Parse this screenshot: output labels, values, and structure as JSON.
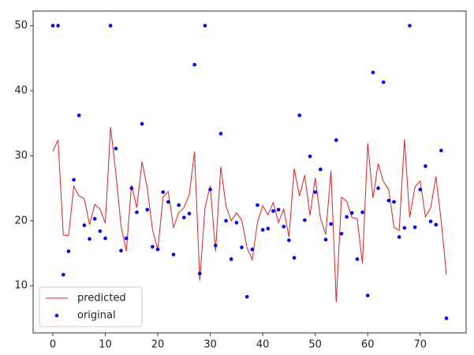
{
  "chart_data": {
    "type": "line",
    "x": [
      0,
      1,
      2,
      3,
      4,
      5,
      6,
      7,
      8,
      9,
      10,
      11,
      12,
      13,
      14,
      15,
      16,
      17,
      18,
      19,
      20,
      21,
      22,
      23,
      24,
      25,
      26,
      27,
      28,
      29,
      30,
      31,
      32,
      33,
      34,
      35,
      36,
      37,
      38,
      39,
      40,
      41,
      42,
      43,
      44,
      45,
      46,
      47,
      48,
      49,
      50,
      51,
      52,
      53,
      54,
      55,
      56,
      57,
      58,
      59,
      60,
      61,
      62,
      63,
      64,
      65,
      66,
      67,
      68,
      69,
      70,
      71,
      72,
      73,
      74,
      75
    ],
    "series": [
      {
        "name": "predicted",
        "type": "line",
        "color": "#e02020",
        "values": [
          30.7,
          32.4,
          17.8,
          17.7,
          25.3,
          23.8,
          23.4,
          19.4,
          22.5,
          21.8,
          19.6,
          34.4,
          27.4,
          19.2,
          15.3,
          25.5,
          22.0,
          29.1,
          25.0,
          18.6,
          15.5,
          23.6,
          24.5,
          18.9,
          21.3,
          22.0,
          24.0,
          30.6,
          10.8,
          22.0,
          25.4,
          15.3,
          28.3,
          22.3,
          20.0,
          21.2,
          20.1,
          15.9,
          14.0,
          19.8,
          22.3,
          20.9,
          22.8,
          19.7,
          21.8,
          17.5,
          28.0,
          23.8,
          27.0,
          20.8,
          26.6,
          20.4,
          17.9,
          27.7,
          7.5,
          23.6,
          23.0,
          20.5,
          20.3,
          13.4,
          31.9,
          23.5,
          28.8,
          26.0,
          24.8,
          19.0,
          18.5,
          32.5,
          20.5,
          25.2,
          26.1,
          20.6,
          22.0,
          26.8,
          20.0,
          11.7
        ]
      },
      {
        "name": "original",
        "type": "scatter",
        "color": "#0000ff",
        "values": [
          50,
          50,
          11.7,
          15.3,
          26.3,
          36.2,
          19.3,
          17.2,
          20.3,
          18.4,
          17.3,
          50,
          31.1,
          15.4,
          17.3,
          25.0,
          21.3,
          34.9,
          21.7,
          16.0,
          15.6,
          24.4,
          22.9,
          14.8,
          22.4,
          20.5,
          21.1,
          44.0,
          11.9,
          50,
          24.8,
          16.2,
          33.4,
          20.0,
          14.1,
          19.7,
          15.9,
          8.3,
          15.6,
          22.4,
          18.6,
          18.8,
          21.5,
          21.7,
          19.1,
          17.0,
          14.3,
          36.2,
          20.1,
          29.9,
          24.4,
          27.9,
          17.1,
          19.5,
          32.4,
          18.0,
          20.6,
          21.2,
          14.1,
          21.3,
          8.5,
          42.8,
          25.0,
          41.3,
          23.1,
          22.9,
          17.5,
          18.9,
          50,
          19.0,
          24.8,
          28.4,
          19.9,
          19.4,
          30.8,
          5.0
        ]
      }
    ],
    "xlim": [
      -3.75,
      78.75
    ],
    "ylim": [
      2.75,
      52.25
    ],
    "xticks": [
      0,
      10,
      20,
      30,
      40,
      50,
      60,
      70
    ],
    "yticks": [
      10,
      20,
      30,
      40,
      50
    ],
    "legend": "lower left"
  }
}
